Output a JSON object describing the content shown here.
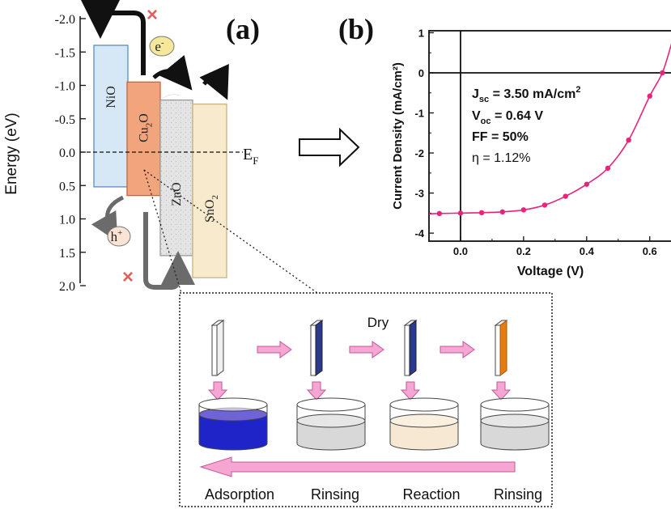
{
  "panel_a": {
    "label": "(a)",
    "ylabel": "Energy (eV)",
    "ticks": [
      "-2.0",
      "-1.5",
      "-1.0",
      "-0.5",
      "0.0",
      "0.5",
      "1.0",
      "1.5",
      "2.0"
    ],
    "fermi_label": "E",
    "fermi_sub": "F",
    "electron_label": "e",
    "electron_sup": "-",
    "hole_label": "h",
    "hole_sup": "+",
    "blocked_mark": "×",
    "layers": [
      {
        "name": "NiO",
        "top_ev": -1.6,
        "bottom_ev": 0.52,
        "fill": "#d6e8f6",
        "stroke": "#5a8ec0"
      },
      {
        "name": "Cu2O",
        "main": "Cu",
        "sub": "2",
        "tail": "O",
        "top_ev": -1.05,
        "bottom_ev": 0.65,
        "fill": "#f2a47c",
        "stroke": "#c8643a"
      },
      {
        "name": "ZnO",
        "top_ev": -0.78,
        "bottom_ev": 1.55,
        "fill": "#e2e2e2",
        "stroke": "#9a9a9a"
      },
      {
        "name": "SnO2",
        "main": "SnO",
        "sub": "2",
        "tail": "",
        "top_ev": -0.72,
        "bottom_ev": 1.88,
        "fill": "#f6e6c4",
        "stroke": "#c9b280"
      }
    ],
    "colors": {
      "arrow_black": "#111111",
      "arrow_gray": "#6b6b6b",
      "cross": "#e0605e",
      "electron_fill": "#f6e79a",
      "hole_fill": "#fbe3d6"
    }
  },
  "panel_b": {
    "label": "(b)",
    "annotations": {
      "jsc_main": "J",
      "jsc_sub": "sc",
      "jsc_val": " = 3.50 mA/cm",
      "jsc_sup": "2",
      "voc_main": "V",
      "voc_sub": "oc",
      "voc_val": " =  0.64 V",
      "ff": "FF = 50%",
      "eta": "η = 1.12%"
    }
  },
  "chart_data": {
    "type": "line",
    "title": "",
    "xlabel": "Voltage (V)",
    "ylabel": "Current Density (mA/cm²)",
    "xlim": [
      -0.1,
      0.67
    ],
    "ylim": [
      -4.2,
      1.05
    ],
    "xticks": [
      0.0,
      0.2,
      0.4,
      0.6
    ],
    "xtick_labels": [
      "0.0",
      "0.2",
      "0.4",
      "0.6"
    ],
    "yticks": [
      1,
      0,
      -1,
      -2,
      -3,
      -4
    ],
    "ytick_labels": [
      "1",
      "0",
      "-1",
      "-2",
      "-3",
      "-4"
    ],
    "zero_lines": true,
    "color": "#e8237a",
    "x": [
      -0.1,
      -0.067,
      0.0,
      0.067,
      0.133,
      0.2,
      0.267,
      0.333,
      0.4,
      0.467,
      0.533,
      0.6,
      0.64,
      0.67
    ],
    "y": [
      -3.52,
      -3.51,
      -3.5,
      -3.49,
      -3.47,
      -3.42,
      -3.3,
      -3.08,
      -2.78,
      -2.38,
      -1.68,
      -0.58,
      0.0,
      0.75
    ]
  },
  "process": {
    "dry_label": "Dry",
    "steps": [
      "Adsorption",
      "Rinsing",
      "Reaction",
      "Rinsing"
    ],
    "colors": {
      "arrow_pink": "#f5a6d2",
      "arrow_pink_stroke": "#c6559b",
      "dye_blue": "#1f24c8",
      "plate_blue": "#2a3a8e",
      "plate_orange": "#e57c10",
      "rinse_gray": "#d8d8d8",
      "reaction_beige": "#f6e8d2"
    }
  }
}
